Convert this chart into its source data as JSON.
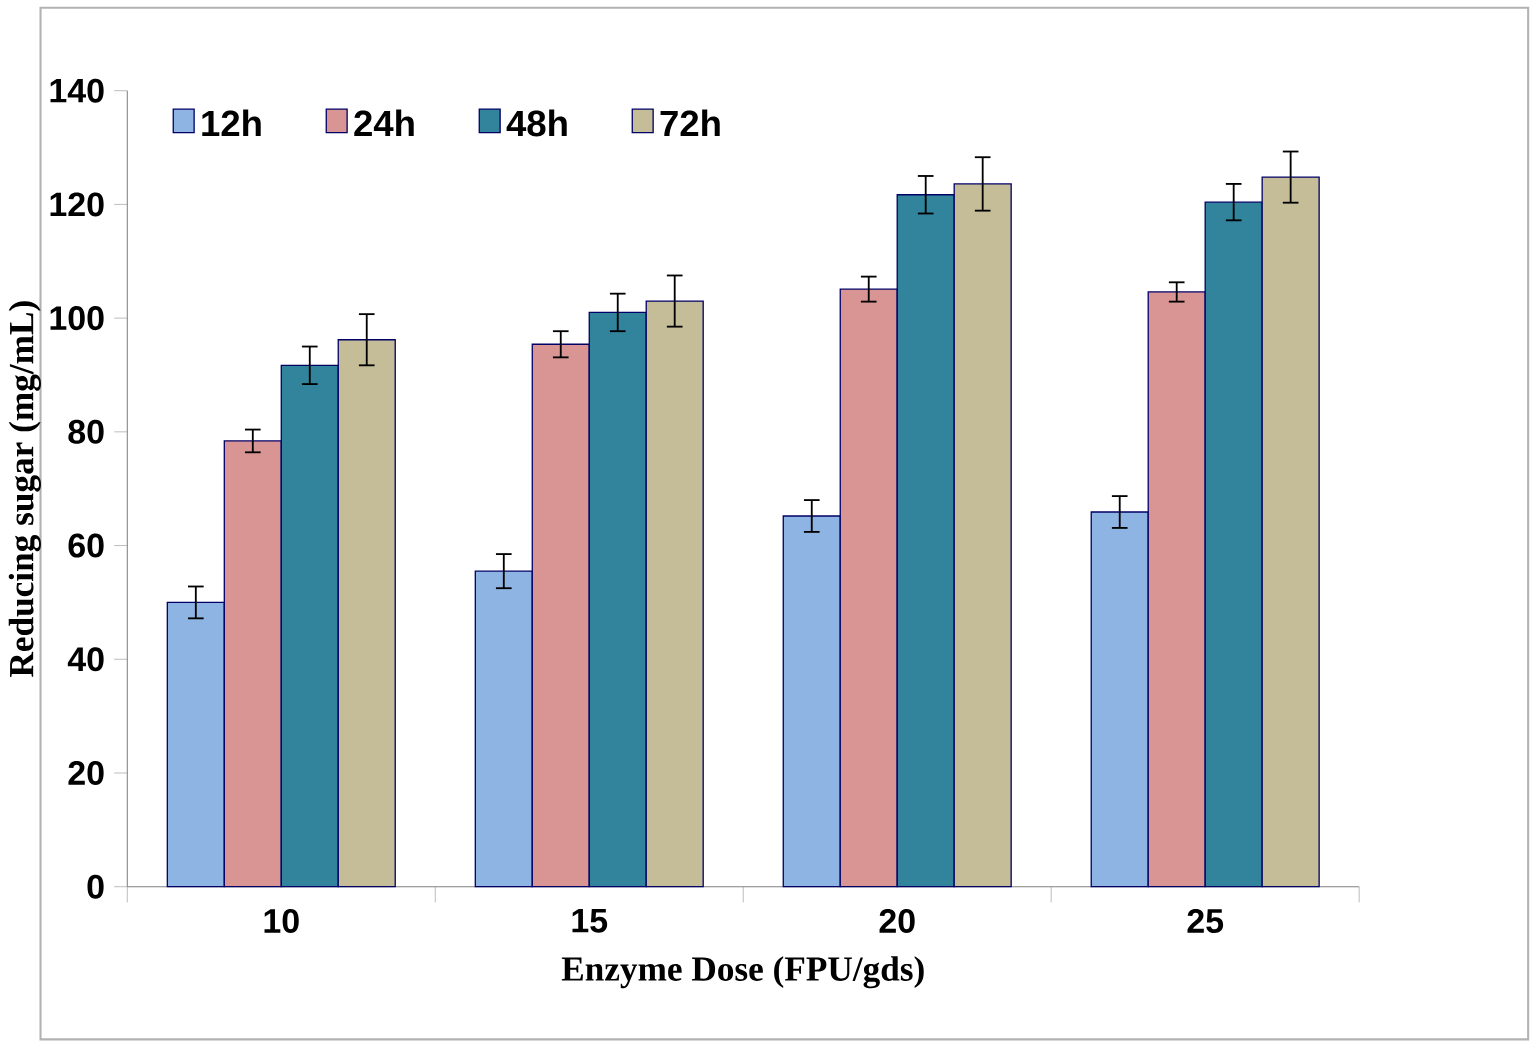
{
  "chart_data": {
    "type": "bar",
    "xlabel": "Enzyme Dose (FPU/gds)",
    "ylabel": "Reducing sugar (mg/mL)",
    "categories": [
      "10",
      "15",
      "20",
      "25"
    ],
    "series": [
      {
        "name": "12h",
        "color": "#8eb4e3",
        "values": [
          50,
          55.5,
          65.2,
          65.9
        ],
        "errors": [
          2.8,
          3,
          2.8,
          2.8
        ]
      },
      {
        "name": "24h",
        "color": "#d99594",
        "values": [
          78.4,
          95.4,
          105.1,
          104.6
        ],
        "errors": [
          2,
          2.3,
          2.2,
          1.7
        ]
      },
      {
        "name": "48h",
        "color": "#31849b",
        "values": [
          91.7,
          101,
          121.7,
          120.4
        ],
        "errors": [
          3.3,
          3.3,
          3.3,
          3.2
        ]
      },
      {
        "name": "72h",
        "color": "#c4bd97",
        "values": [
          96.2,
          103,
          123.6,
          124.8
        ],
        "errors": [
          4.5,
          4.5,
          4.7,
          4.5
        ]
      }
    ],
    "ylim": [
      0,
      140
    ],
    "yticks": [
      0,
      20,
      40,
      60,
      80,
      100,
      120,
      140
    ],
    "grid": false,
    "legend": "top left"
  }
}
